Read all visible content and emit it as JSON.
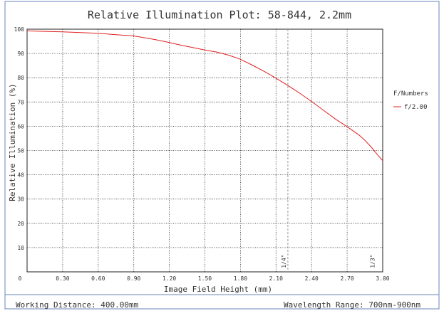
{
  "chart_data": {
    "type": "line",
    "title": "Relative Illumination Plot: 58-844, 2.2mm",
    "xlabel": "Image Field Height (mm)",
    "ylabel": "Relative Illumination (%)",
    "xlim": [
      0,
      3.0
    ],
    "ylim": [
      0,
      100
    ],
    "x_ticks": [
      "0",
      "0.30",
      "0.60",
      "0.90",
      "1.20",
      "1.50",
      "1.80",
      "2.10",
      "2.40",
      "2.70",
      "3.00"
    ],
    "y_ticks": [
      "0",
      "10",
      "20",
      "30",
      "40",
      "50",
      "60",
      "70",
      "80",
      "90",
      "100"
    ],
    "grid": true,
    "legend": {
      "title": "F/Numbers",
      "placement": "right"
    },
    "series": [
      {
        "name": "f/2.00",
        "color": "#e02020",
        "x": [
          0,
          0.15,
          0.3,
          0.45,
          0.6,
          0.75,
          0.9,
          1.0,
          1.1,
          1.2,
          1.3,
          1.4,
          1.5,
          1.6,
          1.7,
          1.8,
          1.9,
          2.0,
          2.1,
          2.2,
          2.3,
          2.4,
          2.5,
          2.6,
          2.7,
          2.8,
          2.85,
          2.9,
          2.95,
          3.0
        ],
        "y": [
          99.3,
          99.1,
          98.9,
          98.6,
          98.3,
          97.7,
          97.2,
          96.4,
          95.5,
          94.5,
          93.4,
          92.4,
          91.4,
          90.6,
          89.3,
          87.6,
          85.2,
          82.6,
          79.8,
          76.8,
          73.6,
          70.2,
          66.6,
          63.0,
          59.8,
          56.4,
          54.2,
          51.6,
          48.6,
          45.8
        ]
      }
    ],
    "annotations": [
      {
        "x": 2.2,
        "label": "1/4\""
      },
      {
        "x": 2.95,
        "label": "1/3\""
      }
    ]
  },
  "footer": {
    "left": "Working Distance: 400.00mm",
    "right": "Wavelength Range: 700nm-900nm"
  }
}
